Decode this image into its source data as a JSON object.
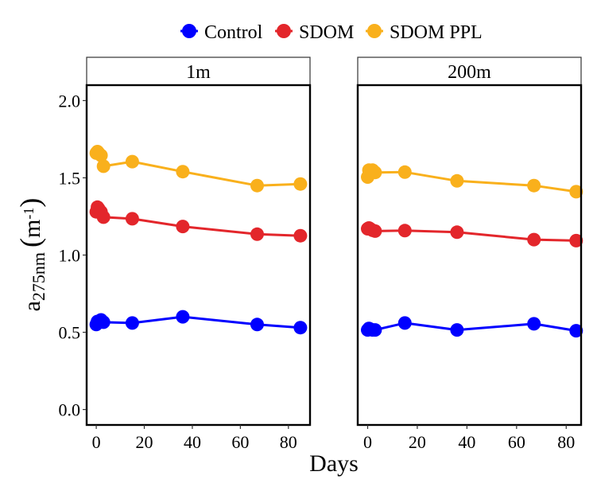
{
  "chart_data": {
    "type": "line",
    "legend": {
      "position": "top",
      "entries": [
        {
          "name": "Control",
          "color": "#0000ff"
        },
        {
          "name": "SDOM",
          "color": "#e3262b"
        },
        {
          "name": "SDOM PPL",
          "color": "#f9b01c"
        }
      ]
    },
    "xlabel": "Days",
    "ylabel": {
      "base": "a",
      "subscript": "275nm",
      "unit_base": "m",
      "unit_superscript": "-1"
    },
    "ylim": [
      -0.1,
      2.1
    ],
    "yticks": [
      0.0,
      0.5,
      1.0,
      1.5,
      2.0
    ],
    "ytick_labels": [
      "0.0",
      "0.5",
      "1.0",
      "1.5",
      "2.0"
    ],
    "xticks": [
      0,
      20,
      40,
      60,
      80
    ],
    "xtick_labels": [
      "0",
      "20",
      "40",
      "60",
      "80"
    ],
    "grid": false,
    "panels": [
      {
        "label": "1m",
        "xlim": [
          -4,
          89
        ],
        "series": [
          {
            "name": "Control",
            "color": "#0000ff",
            "x": [
              0,
              0.5,
              1,
              2,
              3,
              15,
              36,
              67,
              85
            ],
            "y": [
              0.55,
              0.57,
              0.57,
              0.58,
              0.565,
              0.56,
              0.6,
              0.55,
              0.53
            ]
          },
          {
            "name": "SDOM",
            "color": "#e3262b",
            "x": [
              0,
              0.5,
              1,
              2,
              3,
              15,
              36,
              67,
              85
            ],
            "y": [
              1.28,
              1.31,
              1.3,
              1.28,
              1.245,
              1.235,
              1.185,
              1.135,
              1.125
            ]
          },
          {
            "name": "SDOM PPL",
            "color": "#f9b01c",
            "x": [
              0,
              0.5,
              1,
              2,
              3,
              15,
              36,
              67,
              85
            ],
            "y": [
              1.66,
              1.67,
              1.66,
              1.645,
              1.575,
              1.605,
              1.54,
              1.45,
              1.46
            ]
          }
        ]
      },
      {
        "label": "200m",
        "xlim": [
          -4,
          86
        ],
        "series": [
          {
            "name": "Control",
            "color": "#0000ff",
            "x": [
              0,
              0.5,
              1,
              2,
              3,
              15,
              36,
              67,
              84
            ],
            "y": [
              0.515,
              0.525,
              0.52,
              0.515,
              0.515,
              0.56,
              0.515,
              0.555,
              0.51
            ]
          },
          {
            "name": "SDOM",
            "color": "#e3262b",
            "x": [
              0,
              0.5,
              1,
              2,
              3,
              15,
              36,
              67,
              84
            ],
            "y": [
              1.17,
              1.175,
              1.17,
              1.16,
              1.155,
              1.158,
              1.148,
              1.1,
              1.093
            ]
          },
          {
            "name": "SDOM PPL",
            "color": "#f9b01c",
            "x": [
              0,
              0.5,
              1,
              2,
              3,
              15,
              36,
              67,
              84
            ],
            "y": [
              1.505,
              1.55,
              1.545,
              1.55,
              1.535,
              1.537,
              1.48,
              1.45,
              1.41
            ]
          }
        ]
      }
    ]
  }
}
